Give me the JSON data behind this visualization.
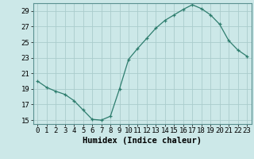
{
  "xlabel": "Humidex (Indice chaleur)",
  "x": [
    0,
    1,
    2,
    3,
    4,
    5,
    6,
    7,
    8,
    9,
    10,
    11,
    12,
    13,
    14,
    15,
    16,
    17,
    18,
    19,
    20,
    21,
    22,
    23
  ],
  "y": [
    20.0,
    19.2,
    18.7,
    18.3,
    17.5,
    16.3,
    15.1,
    15.0,
    15.5,
    19.0,
    22.8,
    24.2,
    25.5,
    26.8,
    27.8,
    28.5,
    29.2,
    29.8,
    29.3,
    28.5,
    27.3,
    25.2,
    24.0,
    23.2
  ],
  "line_color": "#2e7d6e",
  "marker": "+",
  "marker_size": 3,
  "bg_color": "#cce8e8",
  "grid_color": "#aacccc",
  "ylim": [
    14.5,
    30.0
  ],
  "yticks": [
    15,
    17,
    19,
    21,
    23,
    25,
    27,
    29
  ],
  "xlim": [
    -0.5,
    23.5
  ],
  "xticks": [
    0,
    1,
    2,
    3,
    4,
    5,
    6,
    7,
    8,
    9,
    10,
    11,
    12,
    13,
    14,
    15,
    16,
    17,
    18,
    19,
    20,
    21,
    22,
    23
  ],
  "xlabel_fontsize": 7.5,
  "tick_fontsize": 6.5
}
